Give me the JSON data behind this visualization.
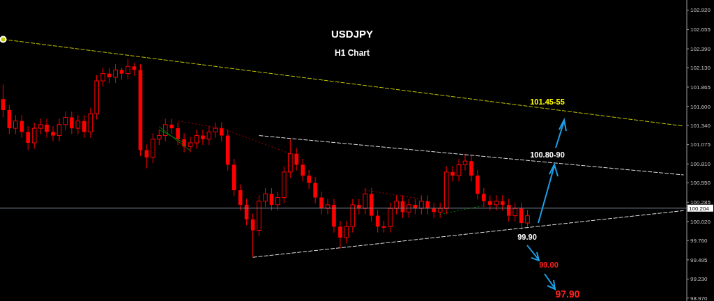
{
  "chart_data": {
    "type": "candlestick",
    "title": "USDJPY",
    "subtitle": "H1 Chart",
    "categories": [
      null,
      null,
      null,
      null,
      null,
      null,
      null,
      null,
      null,
      null,
      null,
      null,
      null,
      null,
      null,
      null,
      null,
      null,
      null,
      null,
      null,
      null,
      null,
      null,
      null,
      null,
      null,
      null,
      null,
      null,
      null,
      null,
      null,
      null,
      null,
      null,
      null,
      null,
      null,
      null,
      null,
      null,
      null,
      null,
      null,
      null,
      null,
      null,
      null,
      null,
      null,
      null,
      null,
      null,
      null,
      null,
      null,
      null,
      null,
      null,
      null,
      null,
      null,
      null,
      null,
      null,
      null,
      null,
      null,
      null,
      null,
      null,
      null,
      null,
      null,
      null,
      null,
      null,
      null,
      null,
      null,
      null,
      null,
      null,
      null,
      null,
      null,
      null,
      null,
      null,
      null,
      null,
      null,
      null,
      null,
      null,
      null,
      null,
      null,
      null,
      null,
      null,
      null,
      null,
      null,
      null,
      null,
      null,
      null,
      null
    ],
    "color": "#ff0000",
    "ohlc": [
      [
        101.7,
        101.9,
        101.45,
        101.55
      ],
      [
        101.55,
        101.62,
        101.22,
        101.3
      ],
      [
        101.3,
        101.48,
        101.22,
        101.4
      ],
      [
        101.4,
        101.48,
        101.17,
        101.25
      ],
      [
        101.25,
        101.33,
        101.0,
        101.1
      ],
      [
        101.1,
        101.38,
        101.02,
        101.3
      ],
      [
        101.3,
        101.43,
        101.22,
        101.35
      ],
      [
        101.35,
        101.43,
        101.17,
        101.25
      ],
      [
        101.25,
        101.33,
        101.12,
        101.2
      ],
      [
        101.2,
        101.43,
        101.12,
        101.35
      ],
      [
        101.35,
        101.53,
        101.27,
        101.45
      ],
      [
        101.45,
        101.53,
        101.22,
        101.3
      ],
      [
        101.3,
        101.48,
        101.22,
        101.4
      ],
      [
        101.4,
        101.48,
        101.17,
        101.25
      ],
      [
        101.25,
        101.58,
        101.17,
        101.5
      ],
      [
        101.5,
        102.03,
        101.42,
        101.95
      ],
      [
        101.95,
        102.13,
        101.87,
        102.05
      ],
      [
        102.05,
        102.13,
        101.92,
        102.0
      ],
      [
        102.0,
        102.18,
        101.92,
        102.1
      ],
      [
        102.1,
        102.13,
        101.97,
        102.05
      ],
      [
        102.05,
        102.25,
        101.97,
        102.15
      ],
      [
        102.15,
        102.2,
        102.02,
        102.1
      ],
      [
        102.1,
        102.18,
        100.92,
        101.0
      ],
      [
        101.0,
        101.08,
        100.75,
        100.9
      ],
      [
        100.9,
        101.23,
        100.82,
        101.15
      ],
      [
        101.15,
        101.28,
        101.07,
        101.2
      ],
      [
        101.2,
        101.43,
        101.12,
        101.35
      ],
      [
        101.35,
        101.43,
        101.22,
        101.3
      ],
      [
        101.3,
        101.38,
        101.07,
        101.15
      ],
      [
        101.15,
        101.23,
        100.97,
        101.05
      ],
      [
        101.05,
        101.18,
        100.97,
        101.1
      ],
      [
        101.1,
        101.28,
        101.02,
        101.2
      ],
      [
        101.2,
        101.28,
        101.07,
        101.15
      ],
      [
        101.15,
        101.33,
        101.07,
        101.25
      ],
      [
        101.25,
        101.38,
        101.17,
        101.3
      ],
      [
        101.3,
        101.38,
        101.12,
        101.2
      ],
      [
        101.2,
        101.28,
        100.72,
        100.8
      ],
      [
        100.8,
        100.88,
        100.37,
        100.45
      ],
      [
        100.45,
        100.53,
        100.17,
        100.25
      ],
      [
        100.25,
        100.33,
        99.97,
        100.05
      ],
      [
        100.05,
        100.13,
        99.53,
        99.9
      ],
      [
        99.9,
        100.38,
        99.82,
        100.3
      ],
      [
        100.3,
        100.48,
        100.22,
        100.4
      ],
      [
        100.4,
        100.48,
        100.17,
        100.25
      ],
      [
        100.25,
        100.43,
        100.17,
        100.35
      ],
      [
        100.35,
        100.78,
        100.27,
        100.7
      ],
      [
        100.7,
        101.15,
        100.62,
        100.95
      ],
      [
        100.95,
        101.03,
        100.72,
        100.8
      ],
      [
        100.8,
        100.88,
        100.57,
        100.65
      ],
      [
        100.65,
        100.73,
        100.47,
        100.55
      ],
      [
        100.55,
        100.63,
        100.27,
        100.35
      ],
      [
        100.35,
        100.43,
        100.12,
        100.2
      ],
      [
        100.2,
        100.33,
        100.12,
        100.25
      ],
      [
        100.25,
        100.33,
        99.87,
        99.95
      ],
      [
        99.95,
        100.03,
        99.65,
        99.8
      ],
      [
        99.8,
        100.03,
        99.72,
        99.95
      ],
      [
        99.95,
        100.33,
        99.87,
        100.25
      ],
      [
        100.25,
        100.33,
        100.12,
        100.2
      ],
      [
        100.2,
        100.48,
        100.12,
        100.4
      ],
      [
        100.4,
        100.48,
        100.02,
        100.1
      ],
      [
        100.1,
        100.18,
        99.87,
        99.95
      ],
      [
        99.95,
        100.03,
        99.87,
        99.95
      ],
      [
        99.95,
        100.28,
        99.87,
        100.2
      ],
      [
        100.2,
        100.38,
        100.12,
        100.3
      ],
      [
        100.3,
        100.38,
        100.07,
        100.15
      ],
      [
        100.15,
        100.33,
        100.07,
        100.25
      ],
      [
        100.25,
        100.33,
        100.12,
        100.2
      ],
      [
        100.2,
        100.38,
        100.12,
        100.3
      ],
      [
        100.3,
        100.38,
        100.12,
        100.2
      ],
      [
        100.2,
        100.28,
        100.07,
        100.15
      ],
      [
        100.15,
        100.28,
        100.07,
        100.2
      ],
      [
        100.2,
        100.78,
        100.12,
        100.7
      ],
      [
        100.7,
        100.78,
        100.57,
        100.65
      ],
      [
        100.65,
        100.88,
        100.57,
        100.8
      ],
      [
        100.8,
        100.95,
        100.72,
        100.85
      ],
      [
        100.85,
        100.93,
        100.57,
        100.65
      ],
      [
        100.65,
        100.73,
        100.32,
        100.4
      ],
      [
        100.4,
        100.48,
        100.22,
        100.3
      ],
      [
        100.3,
        100.38,
        100.17,
        100.25
      ],
      [
        100.25,
        100.38,
        100.17,
        100.3
      ],
      [
        100.3,
        100.38,
        100.17,
        100.25
      ],
      [
        100.25,
        100.33,
        100.02,
        100.1
      ],
      [
        100.1,
        100.28,
        100.02,
        100.2
      ],
      [
        100.2,
        100.28,
        99.92,
        100.0
      ],
      [
        100.0,
        100.18,
        99.95,
        100.1
      ],
      null,
      null,
      null,
      null,
      null,
      null,
      null,
      null,
      null,
      null,
      null,
      null,
      null,
      null,
      null,
      null,
      null,
      null,
      null,
      null,
      null,
      null,
      null,
      null,
      null
    ],
    "series": [
      {
        "type": "line",
        "color": "#c8c800",
        "line_style": "dashed",
        "values": [
          102.52,
          null,
          null,
          null,
          null,
          null,
          null,
          null,
          null,
          null,
          null,
          null,
          null,
          null,
          null,
          null,
          null,
          null,
          null,
          null,
          null,
          null,
          null,
          null,
          null,
          null,
          null,
          null,
          null,
          null,
          null,
          null,
          null,
          null,
          null,
          null,
          null,
          null,
          null,
          null,
          null,
          null,
          null,
          null,
          null,
          null,
          null,
          null,
          null,
          null,
          null,
          null,
          null,
          null,
          null,
          null,
          null,
          null,
          null,
          null,
          null,
          null,
          null,
          null,
          null,
          null,
          null,
          null,
          null,
          null,
          null,
          null,
          null,
          null,
          null,
          null,
          null,
          null,
          null,
          null,
          null,
          null,
          null,
          null,
          null,
          null,
          null,
          null,
          null,
          null,
          null,
          null,
          null,
          null,
          null,
          null,
          null,
          null,
          null,
          null,
          null,
          null,
          null,
          null,
          null,
          null,
          null,
          null,
          null,
          101.33
        ]
      },
      {
        "type": "line",
        "color": "#e0e0e0",
        "line_style": "dashed",
        "values": [
          null,
          null,
          null,
          null,
          null,
          null,
          null,
          null,
          null,
          null,
          null,
          null,
          null,
          null,
          null,
          null,
          null,
          null,
          null,
          null,
          null,
          null,
          null,
          null,
          null,
          null,
          null,
          null,
          null,
          null,
          null,
          null,
          null,
          null,
          null,
          null,
          null,
          null,
          null,
          null,
          null,
          101.2,
          null,
          null,
          null,
          null,
          null,
          null,
          null,
          null,
          null,
          null,
          null,
          null,
          null,
          null,
          null,
          null,
          null,
          null,
          null,
          null,
          null,
          null,
          null,
          null,
          null,
          null,
          null,
          null,
          null,
          null,
          null,
          null,
          null,
          null,
          null,
          null,
          null,
          null,
          null,
          null,
          null,
          null,
          null,
          null,
          null,
          null,
          null,
          null,
          null,
          null,
          null,
          null,
          null,
          null,
          null,
          null,
          null,
          null,
          null,
          null,
          null,
          null,
          null,
          null,
          null,
          null,
          null,
          100.66
        ]
      },
      {
        "type": "line",
        "color": "#e0e0e0",
        "line_style": "dashed",
        "values": [
          null,
          null,
          null,
          null,
          null,
          null,
          null,
          null,
          null,
          null,
          null,
          null,
          null,
          null,
          null,
          null,
          null,
          null,
          null,
          null,
          null,
          null,
          null,
          null,
          null,
          null,
          null,
          null,
          null,
          null,
          null,
          null,
          null,
          null,
          null,
          null,
          null,
          null,
          null,
          null,
          99.53,
          null,
          null,
          null,
          null,
          null,
          null,
          null,
          null,
          null,
          null,
          null,
          null,
          null,
          null,
          null,
          null,
          null,
          null,
          null,
          null,
          null,
          null,
          null,
          null,
          null,
          null,
          null,
          null,
          null,
          null,
          null,
          null,
          null,
          null,
          null,
          null,
          null,
          null,
          null,
          null,
          null,
          null,
          null,
          null,
          null,
          null,
          null,
          null,
          null,
          null,
          null,
          null,
          null,
          null,
          null,
          null,
          null,
          null,
          null,
          null,
          null,
          null,
          null,
          null,
          null,
          null,
          null,
          null,
          100.17
        ]
      },
      {
        "type": "line",
        "color": "#b00000",
        "line_style": "dotted",
        "values": [
          null,
          null,
          null,
          null,
          null,
          null,
          null,
          null,
          null,
          null,
          null,
          null,
          null,
          null,
          null,
          null,
          null,
          null,
          null,
          null,
          null,
          null,
          null,
          null,
          null,
          null,
          null,
          null,
          101.4,
          null,
          null,
          null,
          null,
          null,
          null,
          101.3,
          null,
          null,
          null,
          null,
          null,
          null,
          null,
          null,
          null,
          null,
          100.95,
          null,
          null,
          null,
          null,
          null,
          null,
          null,
          null,
          null,
          null,
          null,
          null,
          null,
          null,
          null,
          null,
          null,
          null,
          null,
          null,
          null,
          null,
          null,
          null,
          null,
          null,
          null,
          null,
          null,
          null,
          null,
          null,
          null,
          null,
          null,
          null,
          null,
          null,
          null,
          null,
          null,
          null,
          null,
          null,
          null,
          null,
          null,
          null,
          null,
          null,
          null,
          null,
          null,
          null,
          null,
          null,
          null,
          null,
          null,
          null,
          null,
          null,
          null
        ]
      },
      {
        "type": "line",
        "color": "#b00000",
        "line_style": "dotted",
        "values": [
          null,
          null,
          null,
          null,
          null,
          null,
          null,
          null,
          null,
          null,
          null,
          null,
          null,
          null,
          null,
          null,
          null,
          null,
          null,
          null,
          null,
          null,
          null,
          null,
          null,
          null,
          null,
          null,
          null,
          null,
          null,
          null,
          null,
          null,
          null,
          null,
          null,
          null,
          null,
          null,
          null,
          null,
          null,
          null,
          null,
          null,
          null,
          null,
          null,
          null,
          null,
          null,
          null,
          null,
          null,
          null,
          null,
          null,
          100.45,
          null,
          null,
          null,
          null,
          null,
          null,
          null,
          null,
          100.33,
          null,
          null,
          null,
          null,
          null,
          null,
          null,
          null,
          null,
          null,
          null,
          null,
          null,
          null,
          null,
          null,
          null,
          null,
          null,
          null,
          null,
          null,
          null,
          null,
          null,
          null,
          null,
          null,
          null,
          null,
          null,
          null,
          null,
          null,
          null,
          null,
          null,
          null,
          null,
          null,
          null,
          null
        ]
      },
      {
        "type": "line",
        "color": "#008000",
        "line_style": "dotted",
        "values": [
          null,
          null,
          null,
          null,
          null,
          null,
          null,
          null,
          null,
          null,
          null,
          null,
          null,
          null,
          null,
          null,
          null,
          null,
          null,
          null,
          null,
          null,
          null,
          null,
          null,
          null,
          null,
          null,
          null,
          null,
          null,
          null,
          null,
          null,
          null,
          null,
          null,
          null,
          null,
          null,
          null,
          null,
          null,
          null,
          null,
          null,
          null,
          null,
          null,
          null,
          null,
          null,
          null,
          null,
          null,
          null,
          null,
          null,
          null,
          null,
          null,
          null,
          null,
          null,
          null,
          null,
          null,
          null,
          null,
          null,
          100.12,
          null,
          null,
          null,
          null,
          null,
          null,
          100.24,
          null,
          null,
          null,
          null,
          null,
          null,
          null,
          null,
          null,
          null,
          null,
          null,
          null,
          null,
          null,
          null,
          null,
          null,
          null,
          null,
          null,
          null,
          null,
          null,
          null,
          null,
          null,
          null,
          null,
          null,
          null,
          null
        ]
      },
      {
        "type": "line",
        "color": "#008000",
        "line_style": "solid",
        "values": [
          null,
          null,
          null,
          null,
          null,
          null,
          null,
          null,
          null,
          null,
          null,
          null,
          null,
          null,
          null,
          null,
          null,
          null,
          null,
          null,
          null,
          null,
          null,
          null,
          null,
          101.32,
          null,
          null,
          null,
          null,
          100.99,
          null,
          null,
          null,
          null,
          null,
          null,
          null,
          null,
          null,
          null,
          null,
          null,
          null,
          null,
          null,
          null,
          null,
          null,
          null,
          null,
          null,
          null,
          null,
          null,
          null,
          null,
          null,
          null,
          null,
          null,
          null,
          null,
          null,
          null,
          null,
          null,
          null,
          null,
          null,
          null,
          null,
          null,
          null,
          null,
          null,
          null,
          null,
          null,
          null,
          null,
          null,
          null,
          null,
          null,
          null,
          null,
          null,
          null,
          null,
          null,
          null,
          null,
          null,
          null,
          null,
          null,
          null,
          null,
          null,
          null,
          null,
          null,
          null,
          null,
          null,
          null,
          null,
          null,
          null
        ]
      },
      {
        "type": "line",
        "color": "#008000",
        "line_style": "solid",
        "values": [
          null,
          null,
          null,
          null,
          null,
          null,
          null,
          null,
          null,
          null,
          null,
          null,
          null,
          null,
          null,
          null,
          null,
          null,
          null,
          null,
          null,
          null,
          null,
          null,
          null,
          101.28,
          null,
          null,
          null,
          101.1,
          null,
          null,
          null,
          null,
          null,
          null,
          null,
          null,
          null,
          null,
          null,
          null,
          null,
          null,
          null,
          null,
          null,
          null,
          null,
          null,
          null,
          null,
          null,
          null,
          null,
          null,
          null,
          null,
          null,
          null,
          null,
          null,
          null,
          null,
          null,
          null,
          null,
          null,
          null,
          null,
          null,
          null,
          null,
          null,
          null,
          null,
          null,
          null,
          null,
          null,
          null,
          null,
          null,
          null,
          null,
          null,
          null,
          null,
          null,
          null,
          null,
          null,
          null,
          null,
          null,
          null,
          null,
          null,
          null,
          null,
          null,
          null,
          null,
          null,
          null,
          null,
          null,
          null,
          null,
          null
        ]
      }
    ],
    "ylim": [
      98.93,
      103.06
    ],
    "yticks": [
      {
        "value": 98.97,
        "label": "98.970"
      },
      {
        "value": 99.23,
        "label": "99.230"
      },
      99.495,
      {
        "value": 99.76,
        "label": "99.760"
      },
      {
        "value": 100.02,
        "label": "100.020"
      },
      100.285,
      {
        "value": 100.55,
        "label": "100.550"
      },
      {
        "value": 100.81,
        "label": "100.810"
      },
      101.075,
      {
        "value": 101.34,
        "label": "101.340"
      },
      {
        "value": 101.6,
        "label": "101.600"
      },
      101.865,
      {
        "value": 102.13,
        "label": "102.130"
      },
      {
        "value": 102.39,
        "label": "102.390"
      },
      102.655,
      {
        "value": 102.92,
        "label": "102.920"
      }
    ],
    "ref_lines": [
      {
        "axis": "y",
        "value": 100.204,
        "label": "100.204",
        "color": "#8090a0"
      }
    ],
    "annotations": [
      "101.45-55",
      "100.80-90",
      "99.90",
      "99.00",
      "97.90"
    ]
  }
}
